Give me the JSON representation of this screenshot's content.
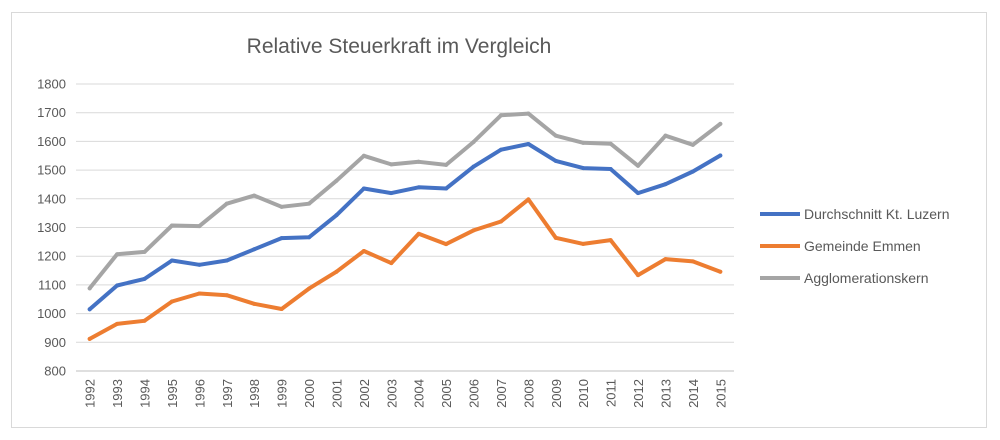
{
  "chart_data": {
    "type": "line",
    "title": "Relative Steuerkraft im Vergleich",
    "xlabel": "",
    "ylabel": "",
    "ylim": [
      800,
      1800
    ],
    "yticks": [
      800,
      900,
      1000,
      1100,
      1200,
      1300,
      1400,
      1500,
      1600,
      1700,
      1800
    ],
    "grid": "horizontal",
    "legend_position": "right",
    "categories": [
      "1992",
      "1993",
      "1994",
      "1995",
      "1996",
      "1997",
      "1998",
      "1999",
      "2000",
      "2001",
      "2002",
      "2003",
      "2004",
      "2005",
      "2006",
      "2007",
      "2008",
      "2009",
      "2010",
      "2011",
      "2012",
      "2013",
      "2014",
      "2015"
    ],
    "series": [
      {
        "name": "Durchschnitt Kt. Luzern",
        "color": "#4472c4",
        "values": [
          1015,
          1098,
          1121,
          1185,
          1170,
          1185,
          1224,
          1263,
          1266,
          1343,
          1436,
          1420,
          1440,
          1436,
          1512,
          1571,
          1591,
          1532,
          1507,
          1504,
          1420,
          1451,
          1495,
          1551
        ]
      },
      {
        "name": "Gemeinde Emmen",
        "color": "#ed7d31",
        "values": [
          912,
          964,
          975,
          1042,
          1070,
          1064,
          1034,
          1016,
          1087,
          1146,
          1218,
          1176,
          1278,
          1242,
          1290,
          1321,
          1398,
          1264,
          1243,
          1256,
          1134,
          1190,
          1182,
          1146
        ]
      },
      {
        "name": "Agglomerationskern",
        "color": "#a5a5a5",
        "values": [
          1088,
          1207,
          1215,
          1307,
          1305,
          1383,
          1411,
          1372,
          1383,
          1463,
          1550,
          1520,
          1529,
          1518,
          1598,
          1691,
          1697,
          1620,
          1595,
          1592,
          1515,
          1620,
          1588,
          1661
        ]
      }
    ]
  }
}
